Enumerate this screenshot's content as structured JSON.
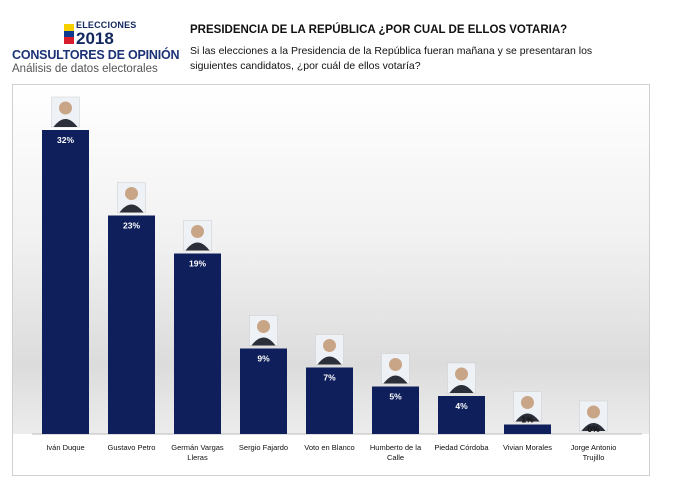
{
  "header": {
    "logo_top": "ELECCIONES",
    "logo_year": "2018",
    "logo_name": "CONSULTORES DE OPINIÓN",
    "logo_sub": "Análisis de datos electorales",
    "title": "PRESIDENCIA DE LA REPÚBLICA ¿POR CUAL DE ELLOS VOTARIA?",
    "question": "Si las elecciones a la Presidencia de la República fueran mañana y se presentaran los siguientes candidatos, ¿por cuál de ellos votaría?"
  },
  "colors": {
    "bar": "#0e1f5b",
    "flag": [
      "#f7d000",
      "#0b3a8f",
      "#d81e2c"
    ]
  },
  "chart_data": {
    "type": "bar",
    "categories": [
      "Iván Duque",
      "Gustavo Petro",
      "Germán Vargas Lleras",
      "Sergio Fajardo",
      "Voto en Blanco",
      "Humberto de la Calle",
      "Piedad Córdoba",
      "Vivian Morales",
      "Jorge Antonio Trujillo"
    ],
    "values": [
      32,
      23,
      19,
      9,
      7,
      5,
      4,
      1,
      0
    ],
    "data_labels": [
      "32%",
      "23%",
      "19%",
      "9%",
      "7%",
      "5%",
      "4%",
      "1%",
      "0%"
    ],
    "title": "PRESIDENCIA DE LA REPÚBLICA ¿POR CUAL DE ELLOS VOTARIA?",
    "xlabel": "",
    "ylabel": "",
    "ylim": [
      0,
      32
    ],
    "grid": false,
    "legend": "none"
  }
}
